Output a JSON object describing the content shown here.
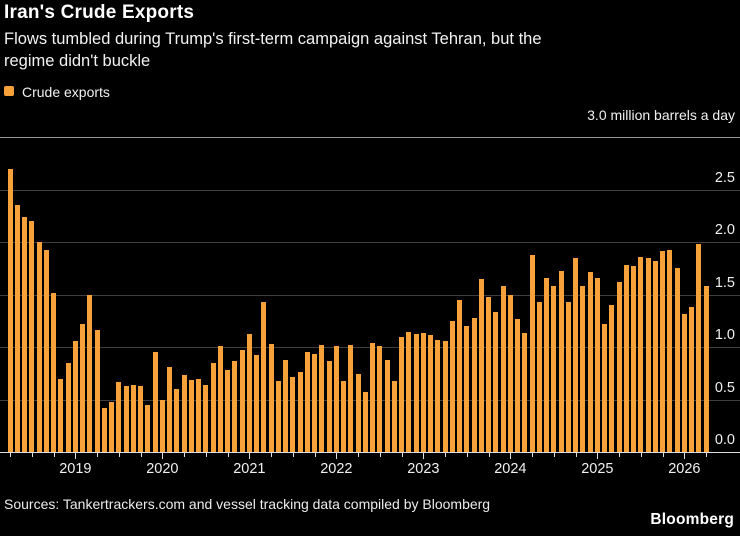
{
  "header": {
    "title": "Iran's Crude Exports",
    "subtitle": "Flows tumbled during Trump's first-term campaign against Tehran, but the regime didn't buckle",
    "subtitle_lines": [
      "Flows tumbled during Trump's first-term campaign against Tehran, but the",
      "regime didn't buckle"
    ]
  },
  "legend": {
    "items": [
      {
        "label": "Crude exports",
        "color": "#f7a13b"
      }
    ]
  },
  "chart_data": {
    "type": "bar",
    "title": "Iran's Crude Exports",
    "series_name": "Crude exports",
    "y_axis_top_label": "3.0 million barrels a day",
    "unit": "million barrels a day",
    "ylim": [
      0,
      3.0
    ],
    "y_ticks": [
      0,
      0.5,
      1.0,
      1.5,
      2.0,
      2.5
    ],
    "y_tick_labels": [
      "0.0",
      "0.5",
      "1.0",
      "1.5",
      "2.0",
      "2.5"
    ],
    "x_tick_labels": [
      "2019",
      "2020",
      "2021",
      "2022",
      "2023",
      "2024",
      "2025",
      "2026"
    ],
    "grid": "horizontal",
    "legend_position": "top-left",
    "bar_color": "#f7a13b",
    "months": [
      "2018-04",
      "2018-05",
      "2018-06",
      "2018-07",
      "2018-08",
      "2018-09",
      "2018-10",
      "2018-11",
      "2018-12",
      "2019-01",
      "2019-02",
      "2019-03",
      "2019-04",
      "2019-05",
      "2019-06",
      "2019-07",
      "2019-08",
      "2019-09",
      "2019-10",
      "2019-11",
      "2019-12",
      "2020-01",
      "2020-02",
      "2020-03",
      "2020-04",
      "2020-05",
      "2020-06",
      "2020-07",
      "2020-08",
      "2020-09",
      "2020-10",
      "2020-11",
      "2020-12",
      "2021-01",
      "2021-02",
      "2021-03",
      "2021-04",
      "2021-05",
      "2021-06",
      "2021-07",
      "2021-08",
      "2021-09",
      "2021-10",
      "2021-11",
      "2021-12",
      "2022-01",
      "2022-02",
      "2022-03",
      "2022-04",
      "2022-05",
      "2022-06",
      "2022-07",
      "2022-08",
      "2022-09",
      "2022-10",
      "2022-11",
      "2022-12",
      "2023-01",
      "2023-02",
      "2023-03",
      "2023-04",
      "2023-05",
      "2023-06",
      "2023-07",
      "2023-08",
      "2023-09",
      "2023-10",
      "2023-11",
      "2023-12",
      "2024-01",
      "2024-02",
      "2024-03",
      "2024-04",
      "2024-05",
      "2024-06",
      "2024-07",
      "2024-08",
      "2024-09",
      "2024-10",
      "2024-11",
      "2024-12",
      "2025-01",
      "2025-02",
      "2025-03",
      "2025-04",
      "2025-05",
      "2025-06",
      "2025-07",
      "2025-08",
      "2025-09",
      "2025-10",
      "2025-11",
      "2025-12",
      "2026-01",
      "2026-02",
      "2026-03",
      "2026-04"
    ],
    "values": [
      2.7,
      2.35,
      2.24,
      2.2,
      2.0,
      1.92,
      1.51,
      0.7,
      0.85,
      1.06,
      1.22,
      1.5,
      1.16,
      0.42,
      0.48,
      0.67,
      0.63,
      0.64,
      0.63,
      0.45,
      0.95,
      0.5,
      0.81,
      0.6,
      0.73,
      0.69,
      0.7,
      0.64,
      0.85,
      1.01,
      0.78,
      0.87,
      0.97,
      1.12,
      0.92,
      1.43,
      1.03,
      0.68,
      0.88,
      0.71,
      0.76,
      0.95,
      0.93,
      1.02,
      0.87,
      1.01,
      0.68,
      1.02,
      0.74,
      0.57,
      1.04,
      1.01,
      0.88,
      0.68,
      1.1,
      1.14,
      1.12,
      1.13,
      1.11,
      1.07,
      1.06,
      1.25,
      1.45,
      1.2,
      1.28,
      1.65,
      1.48,
      1.33,
      1.58,
      1.5,
      1.27,
      1.13,
      1.88,
      1.43,
      1.66,
      1.58,
      1.72,
      1.43,
      1.85,
      1.58,
      1.71,
      1.66,
      1.22,
      1.4,
      1.62,
      1.78,
      1.77,
      1.86,
      1.85,
      1.82,
      1.91,
      1.92,
      1.75,
      1.31,
      1.38,
      1.98,
      1.58
    ]
  },
  "footer": {
    "sources": "Sources: Tankertrackers.com and vessel tracking data compiled by Bloomberg",
    "brand": "Bloomberg"
  },
  "colors": {
    "background": "#000000",
    "bar": "#f7a13b",
    "gridline": "#3e3e3e",
    "top_rule": "#969696",
    "axis_line": "#dedede",
    "tick": "#dedede",
    "text": "#ffffff",
    "secondary_text": "#f0f0f0"
  }
}
